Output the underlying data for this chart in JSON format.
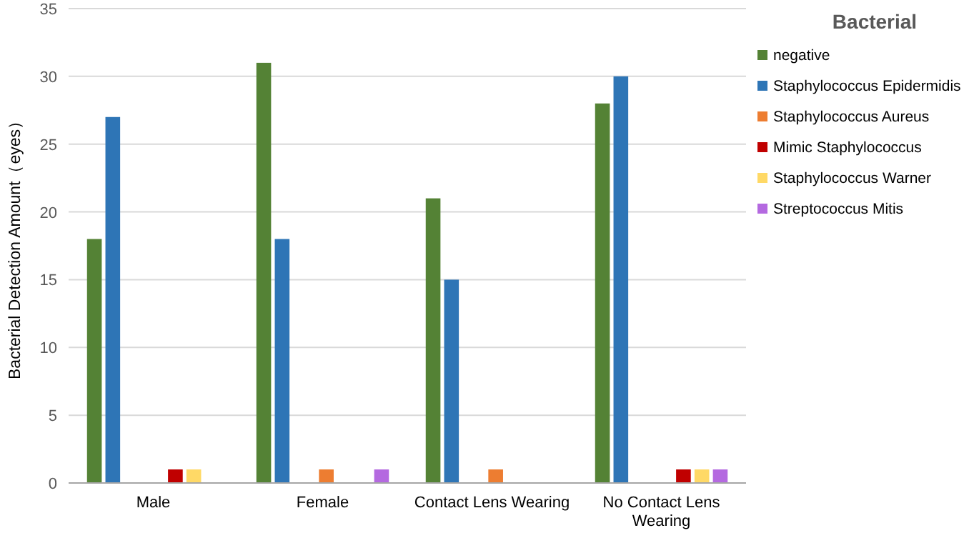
{
  "chart_data": {
    "type": "bar",
    "ylabel": "Bacterial Detection Amount（eyes）",
    "legend_title": "Bacterial",
    "legend": "right",
    "categories": [
      "Male",
      "Female",
      "Contact Lens Wearing",
      "No Contact Lens Wearing"
    ],
    "series": [
      {
        "name": "negative",
        "color": "#548235",
        "values": [
          18,
          31,
          21,
          28
        ]
      },
      {
        "name": "Staphylococcus Epidermidis",
        "color": "#2e75b6",
        "values": [
          27,
          18,
          15,
          30
        ]
      },
      {
        "name": "Staphylococcus Aureus",
        "color": "#ed7d31",
        "values": [
          0,
          1,
          1,
          0
        ]
      },
      {
        "name": "Mimic Staphylococcus",
        "color": "#c00000",
        "values": [
          1,
          0,
          0,
          1
        ]
      },
      {
        "name": "Staphylococcus Warner",
        "color": "#ffd966",
        "values": [
          1,
          0,
          0,
          1
        ]
      },
      {
        "name": "Streptococcus Mitis",
        "color": "#b469e0",
        "values": [
          0,
          1,
          0,
          1
        ]
      }
    ],
    "ylim": [
      0,
      35
    ],
    "yticks": [
      0,
      5,
      10,
      15,
      20,
      25,
      30,
      35
    ],
    "grid": "y"
  }
}
